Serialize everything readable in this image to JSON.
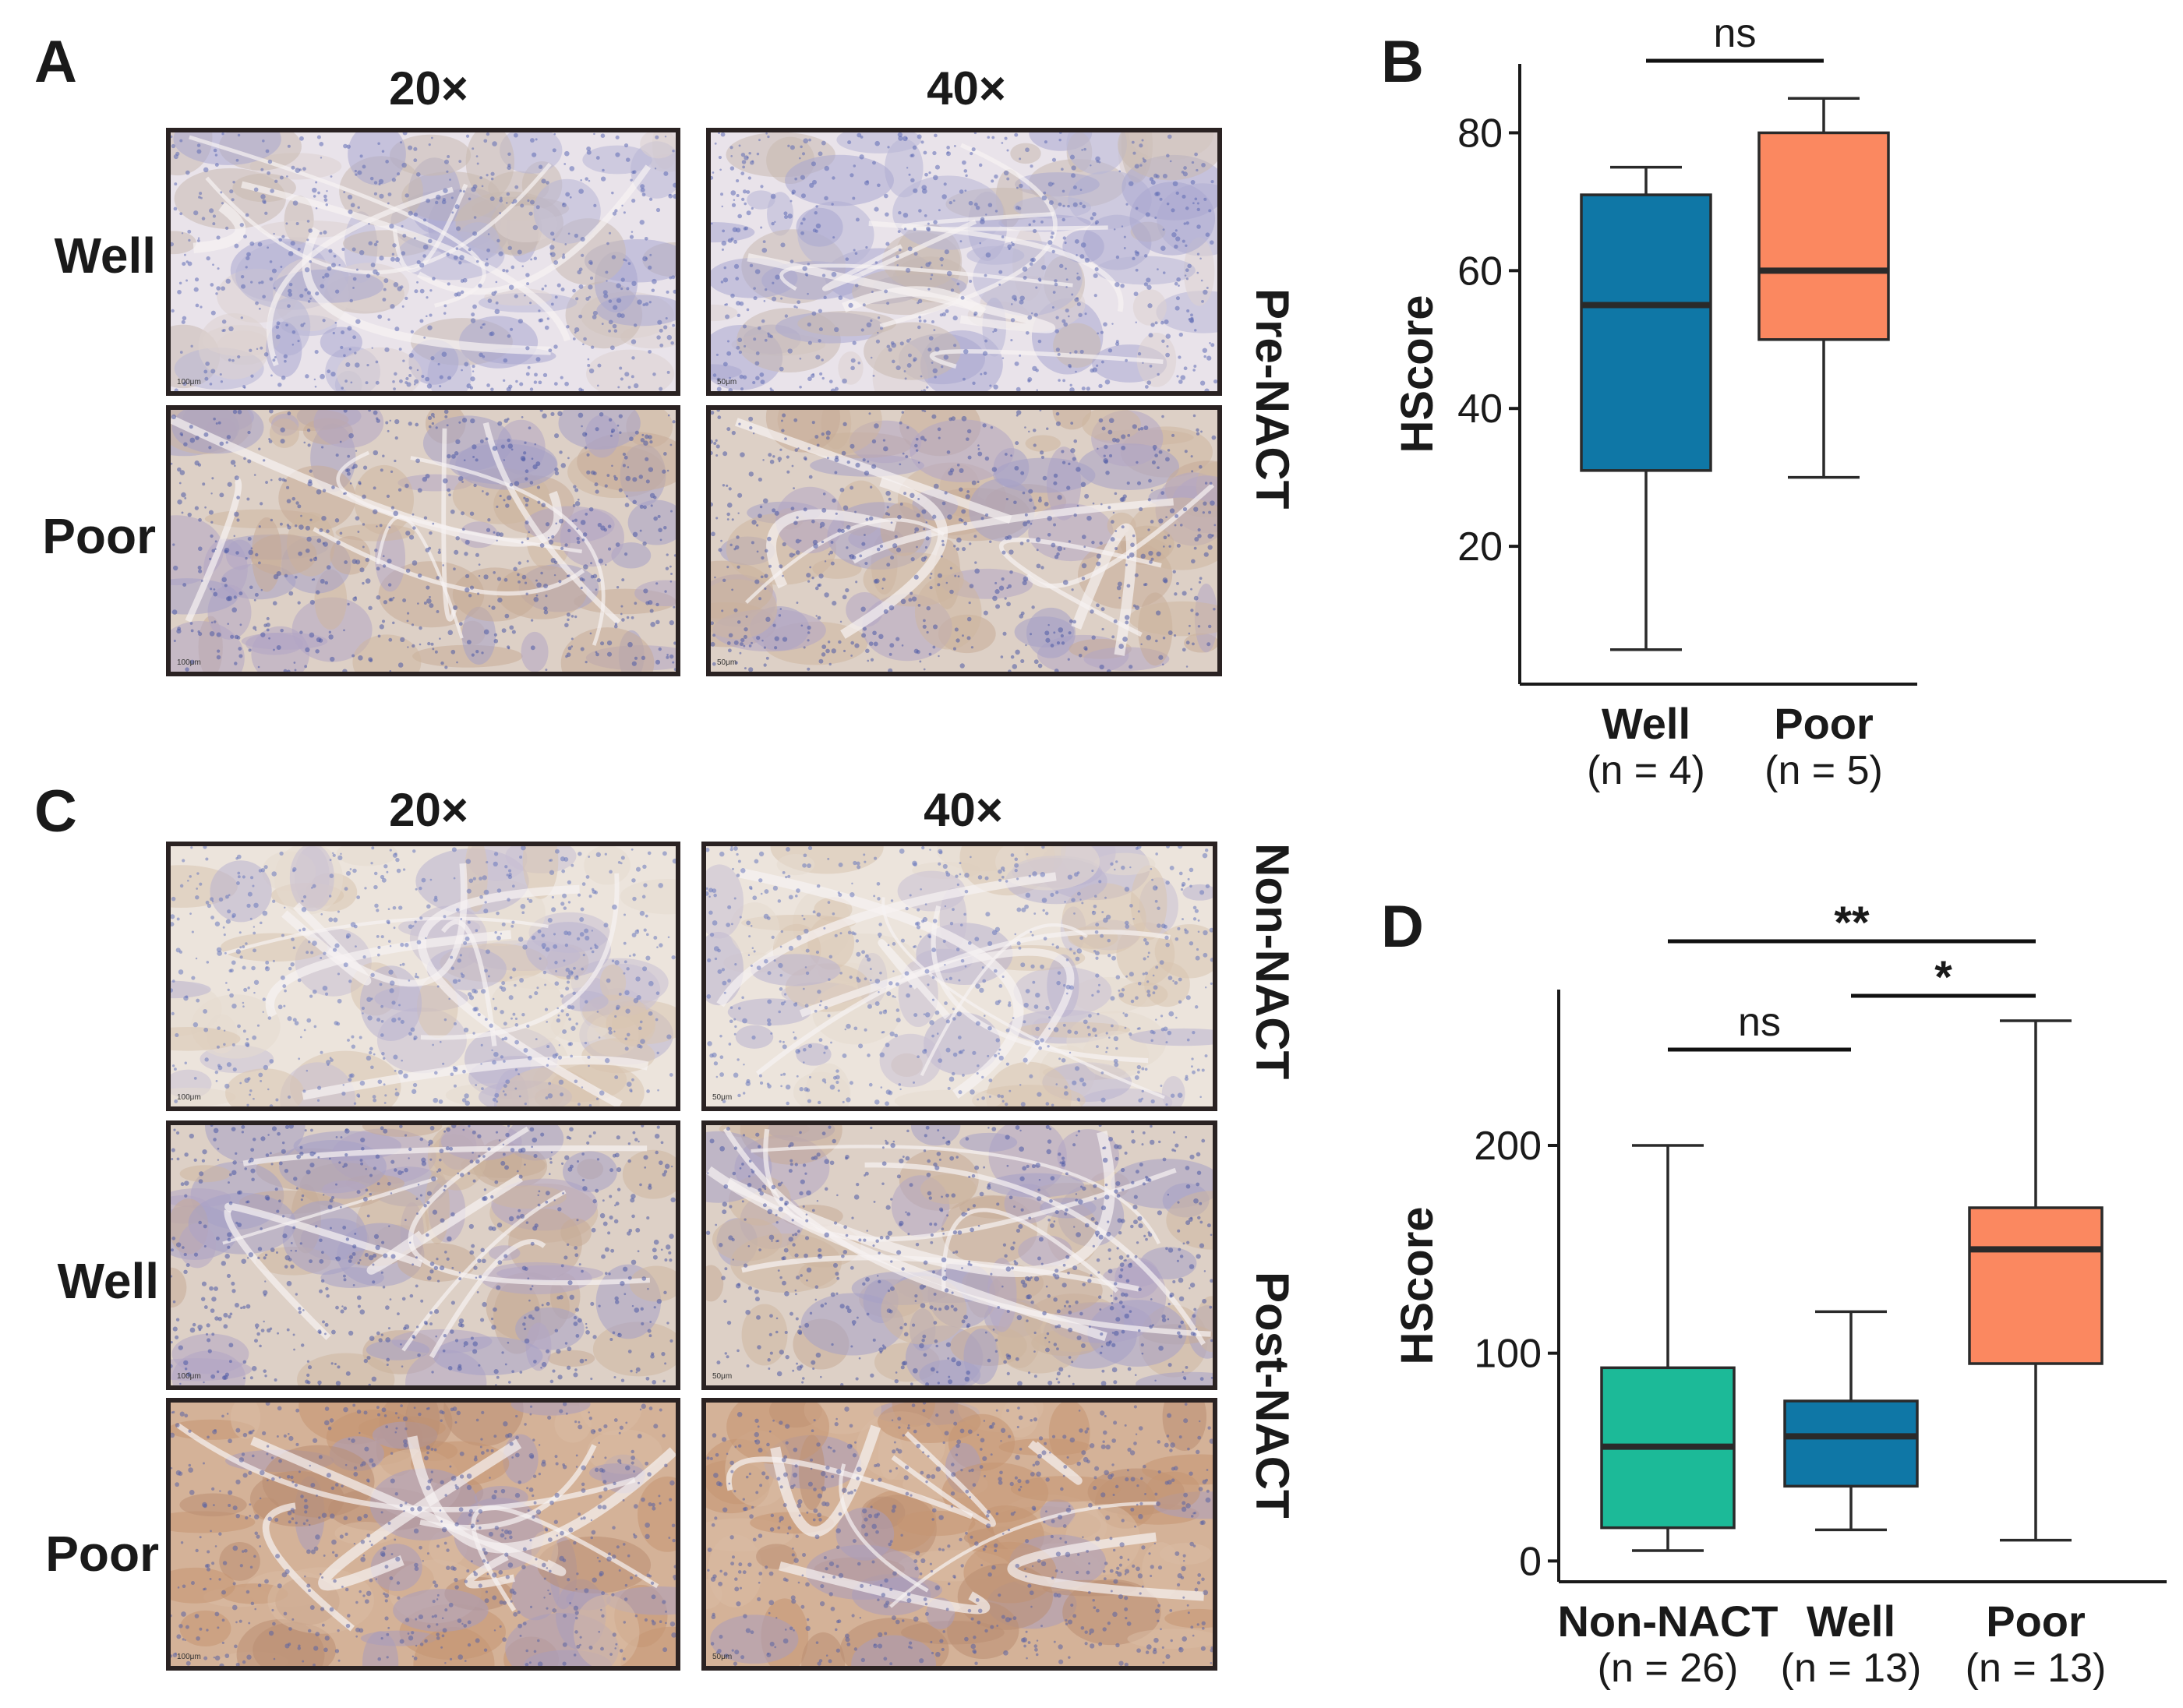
{
  "panels": {
    "A": {
      "letter": "A",
      "columns": [
        "20×",
        "40×"
      ],
      "rows": [
        "Well",
        "Poor"
      ],
      "side_label": "Pre-NACT",
      "scale_labels": [
        "100μm",
        "50μm"
      ]
    },
    "C": {
      "letter": "C",
      "columns": [
        "20×",
        "40×"
      ],
      "rows": [
        "",
        "Well",
        "Poor"
      ],
      "side_labels": [
        "Non-NACT",
        "Post-NACT"
      ],
      "scale_labels": [
        "100μm",
        "50μm"
      ]
    }
  },
  "chart_data": [
    {
      "panel": "B",
      "type": "box",
      "ylabel": "HScore",
      "ylim": [
        0,
        90
      ],
      "yticks": [
        20,
        40,
        60,
        80
      ],
      "categories": [
        {
          "label": "Well",
          "sublabel": "(n = 4)",
          "color": "#0f77a6",
          "min": 5,
          "q1": 31,
          "median": 55,
          "q3": 71,
          "max": 75
        },
        {
          "label": "Poor",
          "sublabel": "(n = 5)",
          "color": "#fb8860",
          "min": 30,
          "q1": 50,
          "median": 60,
          "q3": 80,
          "max": 85
        }
      ],
      "comparisons": [
        {
          "from": 0,
          "to": 1,
          "label": "ns"
        }
      ]
    },
    {
      "panel": "D",
      "type": "box",
      "ylabel": "HScore",
      "ylim": [
        -10,
        275
      ],
      "yticks": [
        0,
        100,
        200
      ],
      "categories": [
        {
          "label": "Non-NACT",
          "sublabel": "(n = 26)",
          "color": "#1cba98",
          "min": 5,
          "q1": 16,
          "median": 55,
          "q3": 93,
          "max": 200
        },
        {
          "label": "Well",
          "sublabel": "(n = 13)",
          "color": "#0f77a6",
          "min": 15,
          "q1": 36,
          "median": 60,
          "q3": 77,
          "max": 120
        },
        {
          "label": "Poor",
          "sublabel": "(n = 13)",
          "color": "#fb8860",
          "min": 10,
          "q1": 95,
          "median": 150,
          "q3": 170,
          "max": 260
        }
      ],
      "comparisons": [
        {
          "from": 0,
          "to": 2,
          "label": "**"
        },
        {
          "from": 1,
          "to": 2,
          "label": "*"
        },
        {
          "from": 0,
          "to": 1,
          "label": "ns"
        }
      ]
    }
  ]
}
